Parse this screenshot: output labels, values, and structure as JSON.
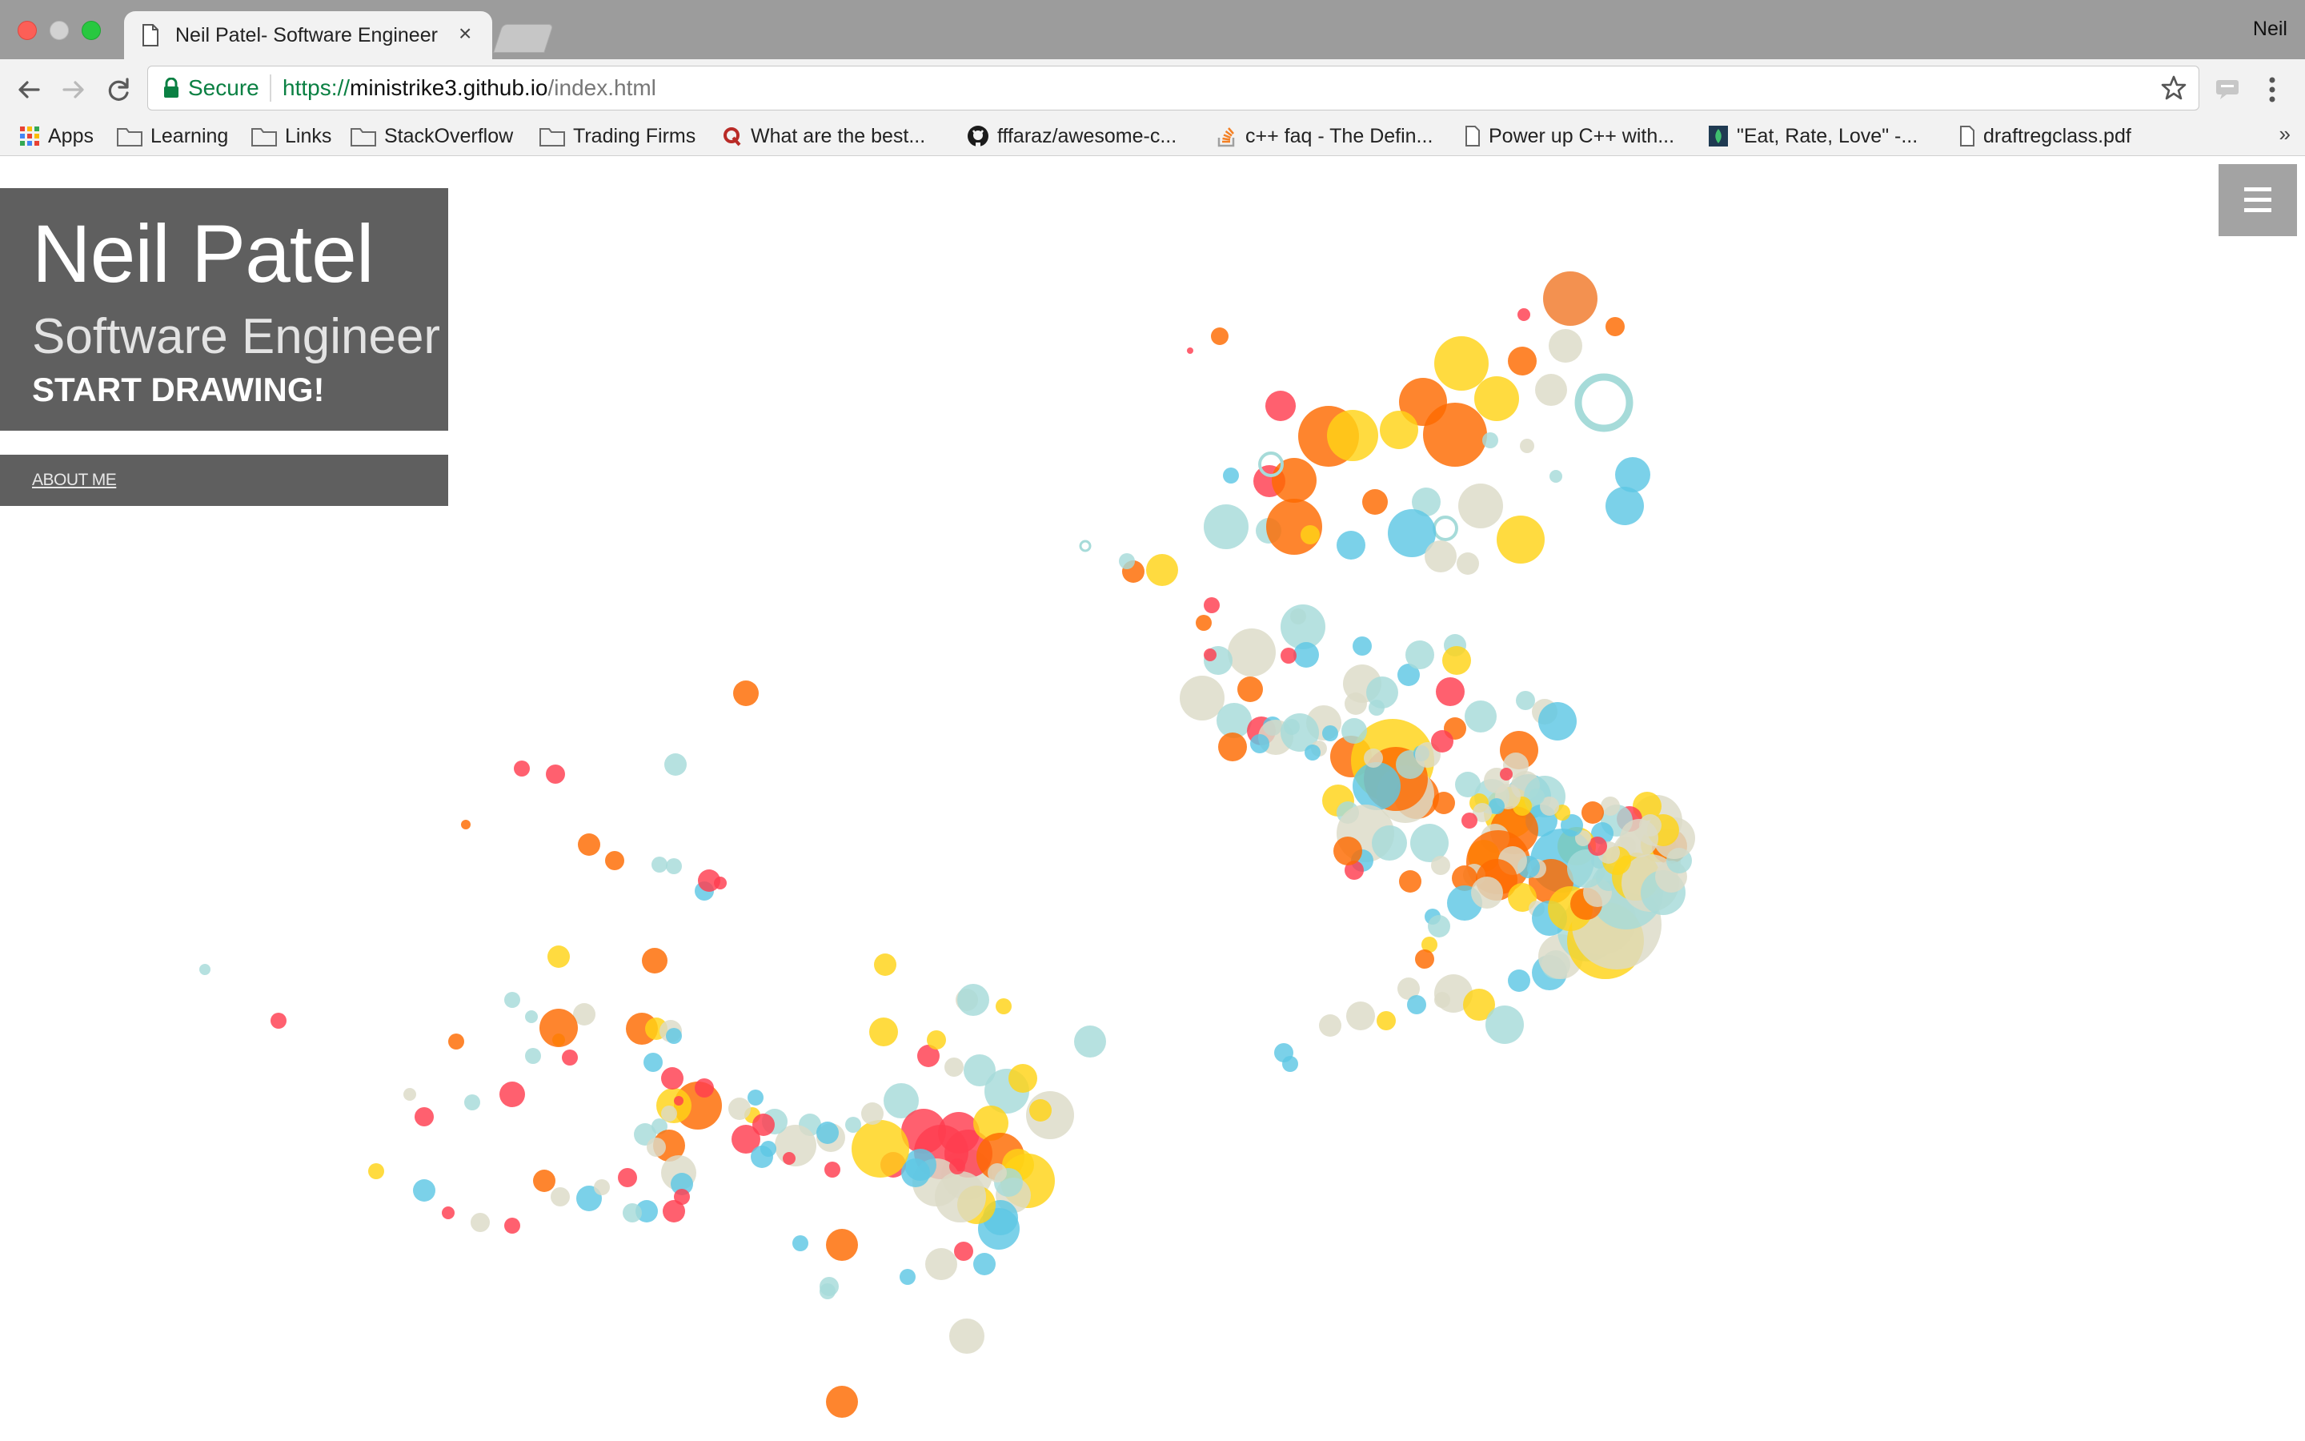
{
  "browser": {
    "tab_title": "Neil Patel- Software Engineer",
    "tab_close": "×",
    "profile_name": "Neil",
    "secure_label": "Secure",
    "url_scheme": "https://",
    "url_host": "ministrike3.github.io",
    "url_path": "/index.html",
    "bookmarks": [
      {
        "label": "Apps",
        "icon": "apps-grid-icon"
      },
      {
        "label": "Learning",
        "icon": "folder-icon"
      },
      {
        "label": "Links",
        "icon": "folder-icon"
      },
      {
        "label": "StackOverflow",
        "icon": "folder-icon"
      },
      {
        "label": "Trading Firms",
        "icon": "folder-icon"
      },
      {
        "label": "What are the best...",
        "icon": "quora-icon"
      },
      {
        "label": "fffaraz/awesome-c...",
        "icon": "github-icon"
      },
      {
        "label": "c++ faq - The Defin...",
        "icon": "stackoverflow-icon"
      },
      {
        "label": "Power up C++ with...",
        "icon": "page-icon"
      },
      {
        "label": "\"Eat, Rate, Love\" -...",
        "icon": "site-icon"
      },
      {
        "label": "draftregclass.pdf",
        "icon": "page-icon"
      }
    ],
    "bookmarks_overflow": "»"
  },
  "page": {
    "name": "Neil Patel",
    "role": "Software Engineer",
    "cta": "START DRAWING!",
    "about_link": "ABOUT ME"
  },
  "colors": {
    "panel": "#5f5f5f",
    "bubble_palette": [
      "#fe6a00",
      "#ffd316",
      "#ff3d4f",
      "#5ec7e4",
      "#a6dbd9",
      "#dcdbc7",
      "#f0792a"
    ]
  }
}
